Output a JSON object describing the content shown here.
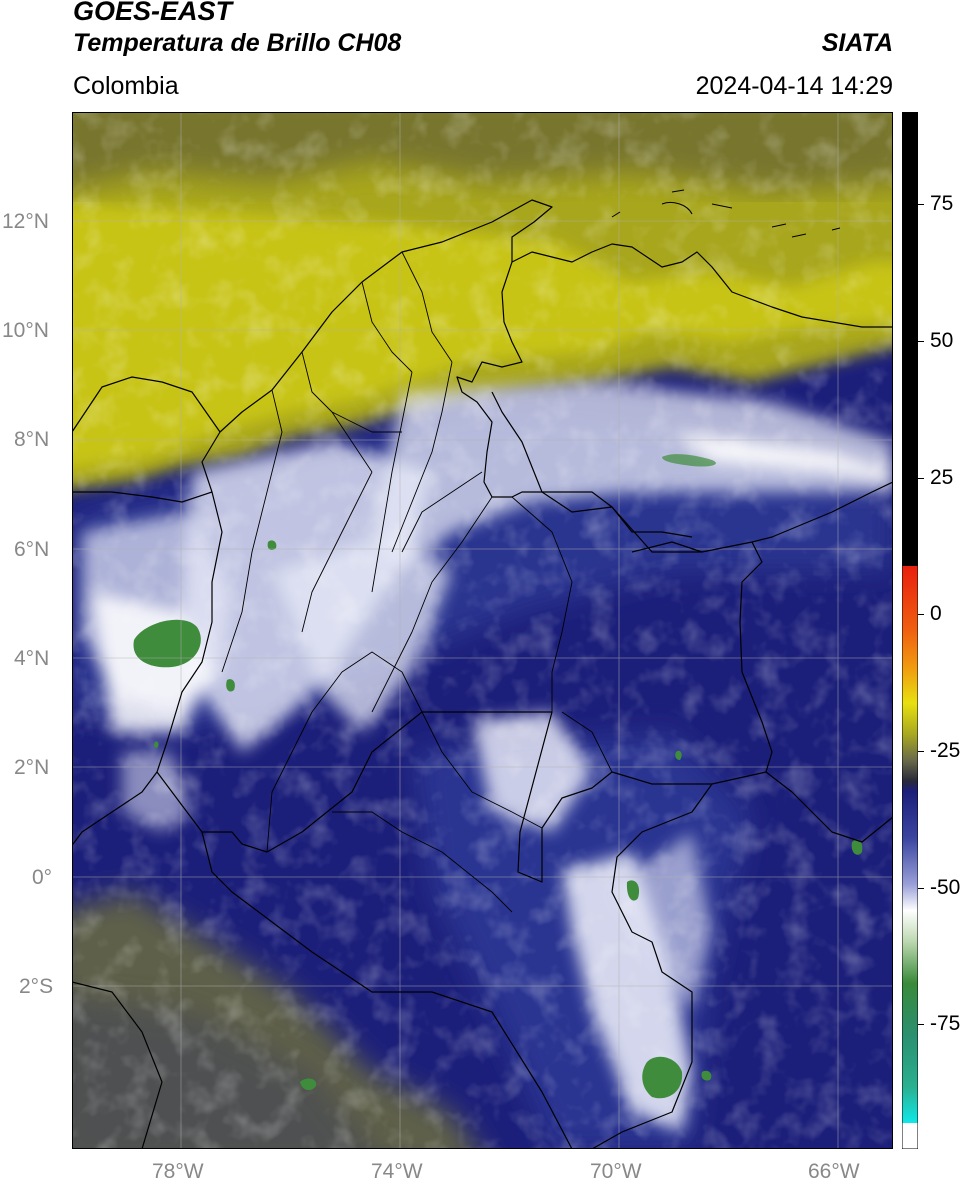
{
  "header": {
    "satellite": "GOES-EAST",
    "product": "Temperatura de Brillo CH08",
    "region": "Colombia",
    "source": "SIATA",
    "datetime": "2024-04-14 14:29"
  },
  "map": {
    "lon_range": [
      -80,
      -65
    ],
    "lat_range": [
      -5,
      14
    ],
    "lat_labels": [
      "12°N",
      "10°N",
      "8°N",
      "6°N",
      "4°N",
      "2°N",
      "0°",
      "2°S"
    ],
    "lat_values": [
      12,
      10,
      8,
      6,
      4,
      2,
      0,
      -2
    ],
    "lon_labels": [
      "78°W",
      "74°W",
      "70°W",
      "66°W"
    ],
    "lon_values": [
      -78,
      -74,
      -70,
      -66
    ]
  },
  "colorbar": {
    "range": [
      -100,
      90
    ],
    "tick_labels": [
      "75",
      "50",
      "25",
      "0",
      "-25",
      "-50",
      "-75"
    ],
    "tick_values": [
      75,
      50,
      25,
      0,
      -25,
      -50,
      -75
    ],
    "colors": {
      "warm": "#000000",
      "red": "#e8200e",
      "orange": "#f09a10",
      "yellow": "#e8e010",
      "olive": "#a8a820",
      "gray": "#6a6a4a",
      "navy": "#1c1f7a",
      "blue": "#3a45a0",
      "white": "#ffffff",
      "green": "#3a8a3a",
      "teal": "#2ab090",
      "cyan": "#10e8e8"
    }
  }
}
